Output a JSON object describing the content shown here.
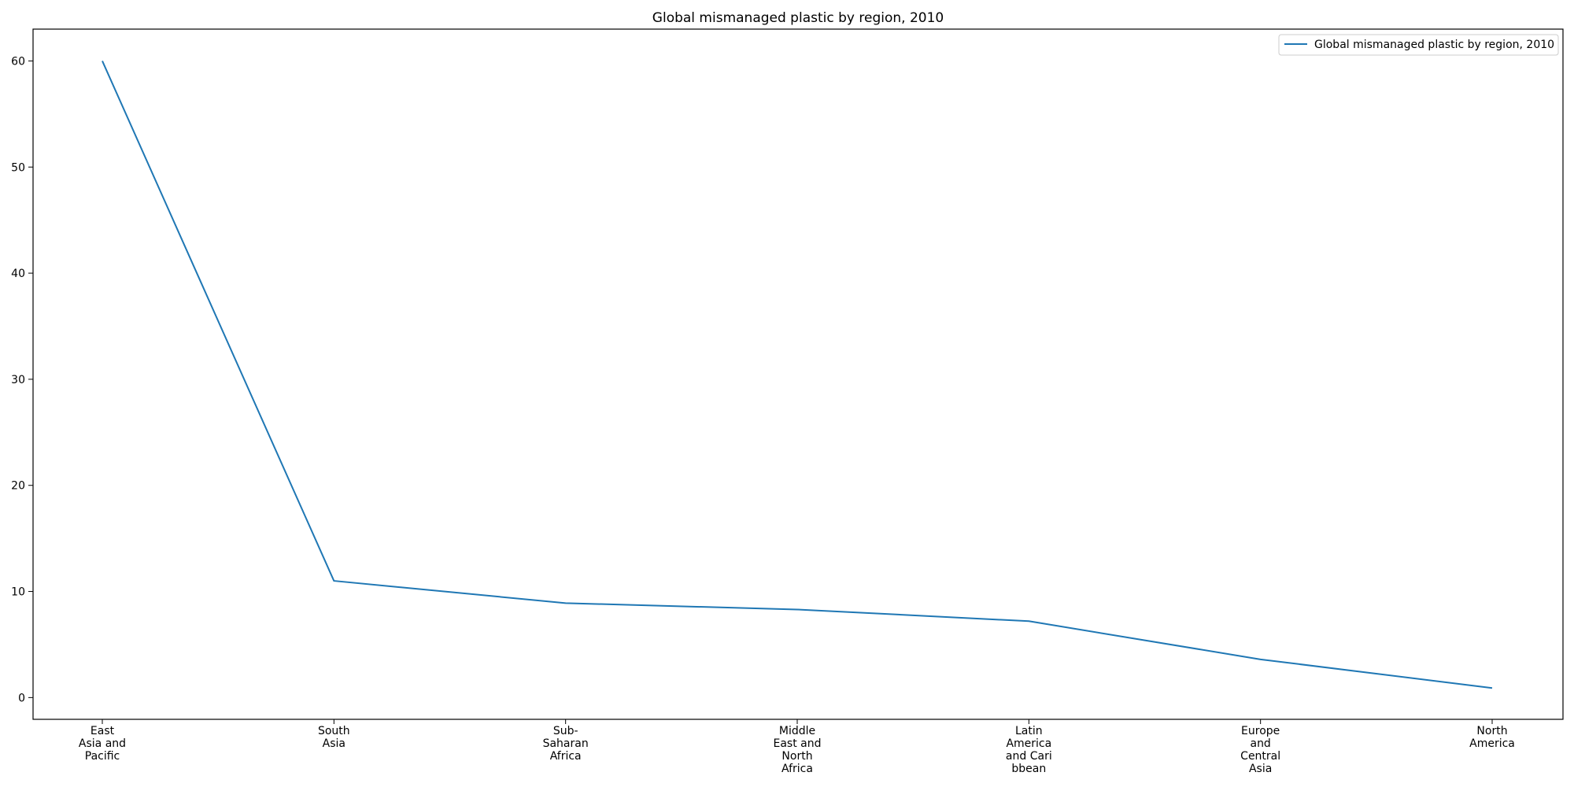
{
  "chart_data": {
    "type": "line",
    "title": "Global mismanaged plastic by region, 2010",
    "xlabel": "",
    "ylabel": "",
    "categories": [
      [
        "East",
        "Asia and",
        "Pacific"
      ],
      [
        "South",
        "Asia"
      ],
      [
        "Sub-",
        "Saharan",
        "Africa"
      ],
      [
        "Middle",
        "East and",
        "North",
        "Africa"
      ],
      [
        "Latin",
        "America",
        "and Cari",
        "bbean"
      ],
      [
        "Europe",
        "and",
        "Central",
        "Asia"
      ],
      [
        "North",
        "America"
      ]
    ],
    "series": [
      {
        "name": "Global mismanaged plastic by region, 2010",
        "color": "#1f77b4",
        "values": [
          60.0,
          11.0,
          8.9,
          8.3,
          7.2,
          3.6,
          0.9
        ]
      }
    ],
    "ylim": [
      -2.05,
      63.0
    ],
    "yticks": [
      0,
      10,
      20,
      30,
      40,
      50,
      60
    ],
    "grid": false,
    "legend_position": "top-right"
  }
}
